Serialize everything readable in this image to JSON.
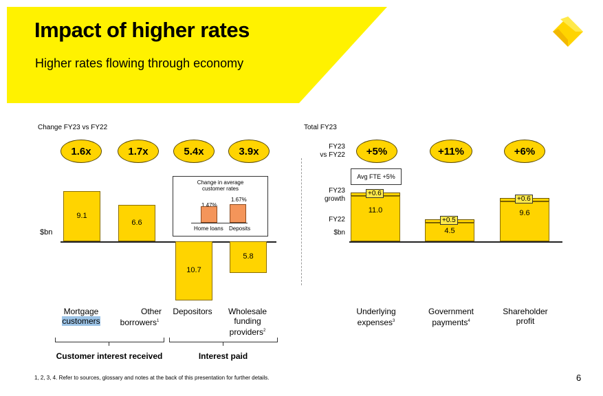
{
  "header": {
    "title": "Impact of higher rates",
    "subtitle": "Higher rates flowing through economy",
    "accent_color": "#fff200",
    "logo_icon": "diamond-logo-icon"
  },
  "left_panel": {
    "caption": "Change FY23 vs FY22",
    "axis_unit": "$bn",
    "multipliers": [
      "1.6x",
      "1.7x",
      "5.4x",
      "3.9x"
    ],
    "inset": {
      "title_line1": "Change in average",
      "title_line2": "customer rates",
      "bars": [
        {
          "label": "Home loans",
          "value": "1.47%"
        },
        {
          "label": "Deposits",
          "value": "1.67%"
        }
      ]
    },
    "categories": [
      {
        "line1": "Mortgage",
        "line2": "customers",
        "line3": ""
      },
      {
        "line1": "Other",
        "line2": "borrowers",
        "sup": "1",
        "line3": ""
      },
      {
        "line1": "Depositors",
        "line2": "",
        "line3": ""
      },
      {
        "line1": "Wholesale",
        "line2": "funding",
        "line3": "providers",
        "sup": "2"
      }
    ],
    "groups": [
      "Customer interest received",
      "Interest paid"
    ]
  },
  "right_panel": {
    "caption": "Total FY23",
    "row_label_top_1": "FY23",
    "row_label_top_2": "vs FY22",
    "row_label_growth_1": "FY23",
    "row_label_growth_2": "growth",
    "row_label_base": "FY22",
    "axis_unit": "$bn",
    "badges": [
      "+5%",
      "+11%",
      "+6%"
    ],
    "fte_note": "Avg FTE +5%",
    "growth_labels": [
      "+0.6",
      "+0.5",
      "+0.6"
    ],
    "categories": [
      {
        "line1": "Underlying",
        "line2": "expenses",
        "sup": "3"
      },
      {
        "line1": "Government",
        "line2": "payments",
        "sup": "4"
      },
      {
        "line1": "Shareholder",
        "line2": "profit",
        "sup": ""
      }
    ]
  },
  "footer": {
    "note": "1, 2, 3, 4. Refer to sources, glossary and notes at the back of this presentation for further details.",
    "page_number": "6"
  },
  "chart_data": [
    {
      "type": "bar",
      "title": "Change FY23 vs FY22",
      "ylabel": "$bn",
      "categories": [
        "Mortgage customers",
        "Other borrowers",
        "Depositors",
        "Wholesale funding providers"
      ],
      "values": [
        9.1,
        6.6,
        -10.7,
        -5.8
      ],
      "labels": [
        "9.1",
        "6.6",
        "10.7",
        "5.8"
      ],
      "multipliers": [
        "1.6x",
        "1.7x",
        "5.4x",
        "3.9x"
      ],
      "groups": [
        {
          "name": "Customer interest received",
          "categories": [
            "Mortgage customers",
            "Other borrowers"
          ]
        },
        {
          "name": "Interest paid",
          "categories": [
            "Depositors",
            "Wholesale funding providers"
          ]
        }
      ]
    },
    {
      "type": "bar",
      "title": "Change in average customer rates",
      "categories": [
        "Home loans",
        "Deposits"
      ],
      "values": [
        1.47,
        1.67
      ],
      "labels": [
        "1.47%",
        "1.67%"
      ]
    },
    {
      "type": "bar",
      "title": "Total FY23",
      "ylabel": "$bn",
      "categories": [
        "Underlying expenses",
        "Government payments",
        "Shareholder profit"
      ],
      "series": [
        {
          "name": "FY22",
          "values": [
            11.0,
            4.5,
            9.6
          ],
          "labels": [
            "11.0",
            "4.5",
            "9.6"
          ]
        },
        {
          "name": "FY23 growth",
          "values": [
            0.6,
            0.5,
            0.6
          ],
          "labels": [
            "+0.6",
            "+0.5",
            "+0.6"
          ]
        }
      ],
      "change_pct": [
        "+5%",
        "+11%",
        "+6%"
      ]
    }
  ]
}
